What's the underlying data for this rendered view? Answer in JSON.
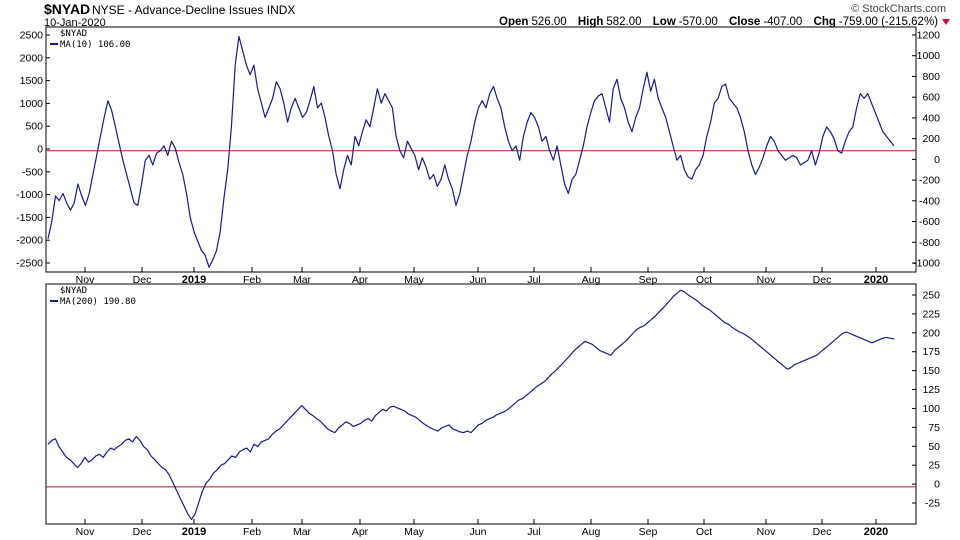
{
  "header": {
    "symbol": "$NYAD",
    "description": "NYSE - Advance-Decline Issues  INDX",
    "date": "10-Jan-2020",
    "credit": "© StockCharts.com",
    "open_label": "Open",
    "open": "526.00",
    "high_label": "High",
    "high": "582.00",
    "low_label": "Low",
    "low": "-570.00",
    "close_label": "Close",
    "close": "-407.00",
    "chg_label": "Chg",
    "chg": "-759.00 (-215.62%)"
  },
  "colors": {
    "line": "#1a1a8c",
    "zero_line": "#b0182e",
    "axis": "#000000",
    "chg_arrow": "#c0143c"
  },
  "months": [
    "Nov",
    "Dec",
    "2019",
    "Feb",
    "Mar",
    "Apr",
    "May",
    "Jun",
    "Jul",
    "Aug",
    "Sep",
    "Oct",
    "Nov",
    "Dec",
    "2020"
  ],
  "chart_data": [
    {
      "type": "line",
      "legend": {
        "symbol": "$NYAD",
        "series": "MA(10) 106.00"
      },
      "left_axis_ticks": [
        "2500",
        "2000",
        "1500",
        "1000",
        "500",
        "0",
        "-500",
        "-1000",
        "-1500",
        "-2000",
        "-2500"
      ],
      "right_axis_ticks": [
        "1200",
        "1000",
        "800",
        "600",
        "400",
        "200",
        "0",
        "-200",
        "-400",
        "-600",
        "-800",
        "-1000"
      ],
      "ylim": [
        -2550,
        2600
      ],
      "zero_line": 0,
      "series": [
        {
          "name": "MA(10)",
          "values": [
            -1850,
            -1500,
            -950,
            -1050,
            -900,
            -1100,
            -1250,
            -1100,
            -700,
            -950,
            -1150,
            -900,
            -500,
            -100,
            300,
            700,
            1050,
            850,
            500,
            150,
            -200,
            -500,
            -800,
            -1100,
            -1150,
            -700,
            -200,
            -100,
            -300,
            -50,
            0,
            100,
            -100,
            200,
            50,
            -250,
            -500,
            -900,
            -1400,
            -1700,
            -1900,
            -2100,
            -2200,
            -2450,
            -2300,
            -2100,
            -1700,
            -1000,
            -400,
            500,
            1800,
            2400,
            2100,
            1800,
            1600,
            1800,
            1300,
            1000,
            700,
            900,
            1100,
            1450,
            1300,
            1000,
            600,
            900,
            1100,
            900,
            700,
            800,
            1050,
            1350,
            900,
            1000,
            700,
            300,
            0,
            -500,
            -800,
            -400,
            -100,
            -300,
            300,
            100,
            400,
            650,
            500,
            900,
            1300,
            1000,
            1200,
            1050,
            900,
            300,
            0,
            -150,
            200,
            50,
            -100,
            -400,
            -150,
            -350,
            -600,
            -500,
            -750,
            -600,
            -300,
            -600,
            -800,
            -1150,
            -900,
            -500,
            -100,
            200,
            600,
            900,
            1050,
            900,
            1200,
            1350,
            1100,
            900,
            500,
            200,
            0,
            100,
            -200,
            300,
            600,
            800,
            700,
            500,
            200,
            300,
            0,
            -200,
            100,
            -300,
            -700,
            -900,
            -600,
            -500,
            -200,
            100,
            500,
            800,
            1050,
            1150,
            1200,
            900,
            600,
            1300,
            1500,
            1100,
            900,
            600,
            400,
            700,
            900,
            1300,
            1650,
            1250,
            1500,
            1100,
            900,
            700,
            400,
            100,
            -200,
            -100,
            -400,
            -550,
            -600,
            -400,
            -300,
            -100,
            300,
            600,
            1000,
            1100,
            1350,
            1400,
            1100,
            1000,
            900,
            700,
            400,
            0,
            -300,
            -500,
            -350,
            -150,
            100,
            300,
            200,
            0,
            -100,
            -200,
            -150,
            -100,
            -150,
            -300,
            -250,
            -200,
            0,
            -300,
            -50,
            300,
            500,
            400,
            250,
            0,
            -50,
            200,
            400,
            500,
            900,
            1200,
            1100,
            1200,
            1000,
            800,
            600,
            400,
            300,
            200,
            100
          ]
        }
      ]
    },
    {
      "type": "line",
      "legend": {
        "symbol": "$NYAD",
        "series": "MA(200) 190.80"
      },
      "right_axis_ticks": [
        "250",
        "225",
        "200",
        "175",
        "150",
        "125",
        "100",
        "75",
        "50",
        "25",
        "0",
        "-25"
      ],
      "ylim": [
        -48,
        262
      ],
      "zero_line": 0,
      "series": [
        {
          "name": "MA(200)",
          "values": [
            55,
            60,
            62,
            52,
            45,
            38,
            35,
            30,
            25,
            30,
            38,
            32,
            35,
            40,
            42,
            38,
            45,
            50,
            48,
            52,
            55,
            60,
            62,
            58,
            65,
            60,
            52,
            48,
            40,
            35,
            30,
            25,
            22,
            15,
            5,
            -5,
            -15,
            -25,
            -35,
            -42,
            -35,
            -20,
            -5,
            5,
            10,
            18,
            22,
            28,
            30,
            35,
            40,
            38,
            45,
            48,
            50,
            45,
            55,
            52,
            58,
            60,
            62,
            68,
            72,
            75,
            80,
            85,
            90,
            95,
            100,
            105,
            100,
            95,
            92,
            88,
            85,
            80,
            75,
            72,
            70,
            76,
            80,
            84,
            82,
            78,
            80,
            82,
            86,
            88,
            85,
            92,
            96,
            100,
            98,
            103,
            104,
            102,
            100,
            98,
            94,
            92,
            90,
            86,
            82,
            79,
            76,
            74,
            72,
            76,
            78,
            80,
            75,
            73,
            71,
            70,
            72,
            70,
            75,
            80,
            82,
            86,
            88,
            90,
            93,
            95,
            97,
            100,
            104,
            108,
            112,
            114,
            118,
            122,
            126,
            130,
            133,
            136,
            141,
            146,
            150,
            155,
            160,
            165,
            170,
            176,
            180,
            184,
            188,
            186,
            184,
            180,
            176,
            174,
            172,
            170,
            176,
            180,
            184,
            188,
            193,
            198,
            203,
            206,
            208,
            212,
            216,
            220,
            225,
            230,
            235,
            240,
            246,
            250,
            254,
            252,
            248,
            245,
            242,
            238,
            234,
            231,
            228,
            224,
            220,
            216,
            212,
            210,
            206,
            203,
            200,
            198,
            195,
            192,
            188,
            184,
            180,
            176,
            172,
            168,
            164,
            160,
            156,
            152,
            154,
            158,
            160,
            162,
            164,
            166,
            168,
            170,
            174,
            178,
            182,
            186,
            190,
            194,
            198,
            200,
            198,
            196,
            194,
            192,
            190,
            188,
            186,
            188,
            190,
            192,
            193,
            192,
            191
          ]
        }
      ]
    }
  ]
}
